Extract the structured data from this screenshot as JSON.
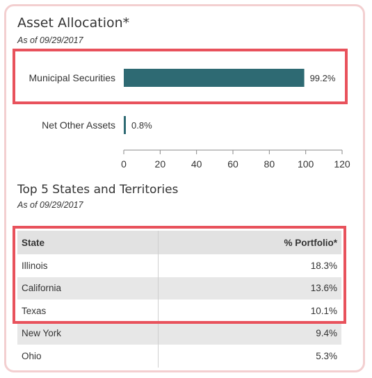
{
  "asset_allocation": {
    "title": "Asset Allocation*",
    "as_of": "As of 09/29/2017"
  },
  "top_states": {
    "title": "Top 5 States and Territories",
    "as_of": "As of 09/29/2017",
    "columns": [
      "State",
      "% Portfolio*"
    ],
    "rows": [
      {
        "state": "Illinois",
        "pct": "18.3%"
      },
      {
        "state": "California",
        "pct": "13.6%"
      },
      {
        "state": "Texas",
        "pct": "10.1%"
      },
      {
        "state": "New York",
        "pct": "9.4%"
      },
      {
        "state": "Ohio",
        "pct": "5.3%"
      }
    ]
  },
  "chart_data": {
    "type": "bar",
    "orientation": "horizontal",
    "categories": [
      "Municipal Securities",
      "Net Other Assets"
    ],
    "values": [
      99.2,
      0.8
    ],
    "value_labels": [
      "99.2%",
      "0.8%"
    ],
    "xlim": [
      0,
      120
    ],
    "xticks": [
      0,
      20,
      40,
      60,
      80,
      100,
      120
    ],
    "bar_color": "#2e6a73",
    "grid": false
  },
  "colors": {
    "highlight": "#e8525c",
    "card_border": "#f3cfd0"
  }
}
